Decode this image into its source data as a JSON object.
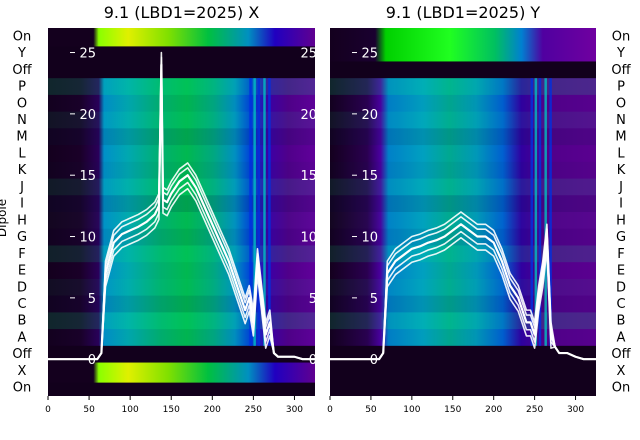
{
  "figure": {
    "ylabel": "Dipole",
    "row_labels": [
      "On",
      "Y",
      "Off",
      "P",
      "O",
      "N",
      "M",
      "L",
      "K",
      "J",
      "I",
      "H",
      "G",
      "F",
      "E",
      "D",
      "C",
      "B",
      "A",
      "Off",
      "X",
      "On"
    ]
  },
  "chart_data": [
    {
      "type": "heatmap",
      "title": "9.1 (LBD1=2025) X",
      "xlim": [
        0,
        325
      ],
      "x_ticks": [
        "0",
        "50",
        "100",
        "150",
        "200",
        "250",
        "300"
      ],
      "y_overlay_ticks": [
        "25",
        "20",
        "15",
        "10",
        "5",
        "0"
      ],
      "overlay_ylim": [
        -3,
        27
      ],
      "colormap": "nipy_spectral",
      "overlay": {
        "type": "line",
        "color": "#ffffff",
        "x": [
          0,
          50,
          60,
          65,
          70,
          80,
          90,
          100,
          110,
          120,
          130,
          135,
          138,
          140,
          145,
          150,
          160,
          170,
          175,
          180,
          190,
          200,
          210,
          220,
          230,
          240,
          245,
          250,
          255,
          260,
          265,
          270,
          275,
          280,
          290,
          300,
          310,
          325
        ],
        "y": [
          0,
          0,
          0,
          0.5,
          7,
          9.5,
          10.2,
          10.5,
          10.8,
          11.2,
          11.8,
          12.5,
          24,
          13,
          12.8,
          13.5,
          14.5,
          15,
          14.5,
          14,
          12.5,
          11,
          9.5,
          8,
          6,
          4,
          5,
          3,
          8,
          5,
          2,
          3,
          0.5,
          0.2,
          0.2,
          0.2,
          0,
          0
        ]
      }
    },
    {
      "type": "heatmap",
      "title": "9.1 (LBD1=2025) Y",
      "xlim": [
        0,
        325
      ],
      "x_ticks": [
        "0",
        "50",
        "100",
        "150",
        "200",
        "250",
        "300"
      ],
      "y_overlay_ticks": [
        "25",
        "20",
        "15",
        "10",
        "5",
        "0"
      ],
      "overlay_ylim": [
        -3,
        27
      ],
      "colormap": "nipy_spectral",
      "overlay": {
        "type": "line",
        "color": "#ffffff",
        "x": [
          0,
          50,
          60,
          65,
          70,
          80,
          90,
          100,
          110,
          120,
          130,
          140,
          150,
          160,
          170,
          180,
          190,
          200,
          210,
          220,
          230,
          240,
          245,
          250,
          255,
          260,
          265,
          270,
          275,
          280,
          290,
          300,
          310,
          325
        ],
        "y": [
          0,
          0,
          0,
          0.5,
          7,
          8,
          8.5,
          9,
          9.2,
          9.5,
          9.7,
          10,
          10.5,
          11,
          10.5,
          10,
          10,
          9.5,
          8,
          6,
          5,
          3,
          3,
          2,
          5,
          7,
          10,
          2,
          1,
          0.5,
          0.5,
          0.2,
          0,
          0
        ]
      }
    }
  ]
}
